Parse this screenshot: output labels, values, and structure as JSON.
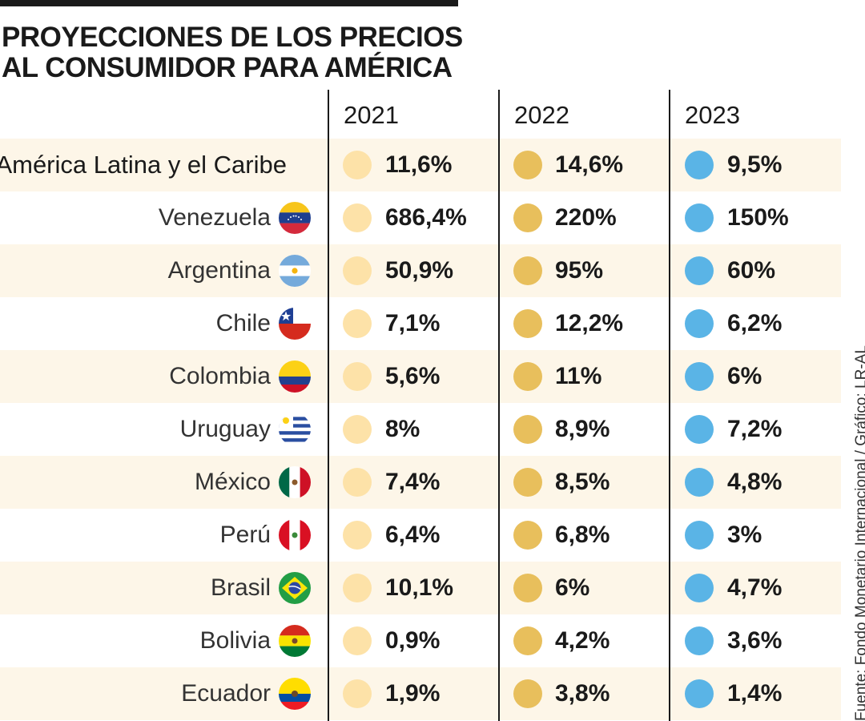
{
  "title": [
    "PROYECCIONES DE LOS PRECIOS",
    "AL CONSUMIDOR PARA AMÉRICA"
  ],
  "source": "Fuente: Fondo Monetario Internacional / Gráfico: LR-AL",
  "colors": {
    "y2021": "#fde2a8",
    "y2022": "#e8bf5c",
    "y2023": "#5ab4e6",
    "row_shade": "#fdf6e8"
  },
  "chart_data": {
    "type": "table",
    "title": "PROYECCIONES DE LOS PRECIOS AL CONSUMIDOR PARA AMÉRICA",
    "columns": [
      "2021",
      "2022",
      "2023"
    ],
    "rows": [
      {
        "label": "América Latina y el Caribe",
        "flag": "",
        "values": [
          "11,6%",
          "14,6%",
          "9,5%"
        ]
      },
      {
        "label": "Venezuela",
        "flag": "venezuela-flag-icon",
        "values": [
          "686,4%",
          "220%",
          "150%"
        ]
      },
      {
        "label": "Argentina",
        "flag": "argentina-flag-icon",
        "values": [
          "50,9%",
          "95%",
          "60%"
        ]
      },
      {
        "label": "Chile",
        "flag": "chile-flag-icon",
        "values": [
          "7,1%",
          "12,2%",
          "6,2%"
        ]
      },
      {
        "label": "Colombia",
        "flag": "colombia-flag-icon",
        "values": [
          "5,6%",
          "11%",
          "6%"
        ]
      },
      {
        "label": "Uruguay",
        "flag": "uruguay-flag-icon",
        "values": [
          "8%",
          "8,9%",
          "7,2%"
        ]
      },
      {
        "label": "México",
        "flag": "mexico-flag-icon",
        "values": [
          "7,4%",
          "8,5%",
          "4,8%"
        ]
      },
      {
        "label": "Perú",
        "flag": "peru-flag-icon",
        "values": [
          "6,4%",
          "6,8%",
          "3%"
        ]
      },
      {
        "label": "Brasil",
        "flag": "brasil-flag-icon",
        "values": [
          "10,1%",
          "6%",
          "4,7%"
        ]
      },
      {
        "label": "Bolivia",
        "flag": "bolivia-flag-icon",
        "values": [
          "0,9%",
          "4,2%",
          "3,6%"
        ]
      },
      {
        "label": "Ecuador",
        "flag": "ecuador-flag-icon",
        "values": [
          "1,9%",
          "3,8%",
          "1,4%"
        ]
      }
    ]
  }
}
